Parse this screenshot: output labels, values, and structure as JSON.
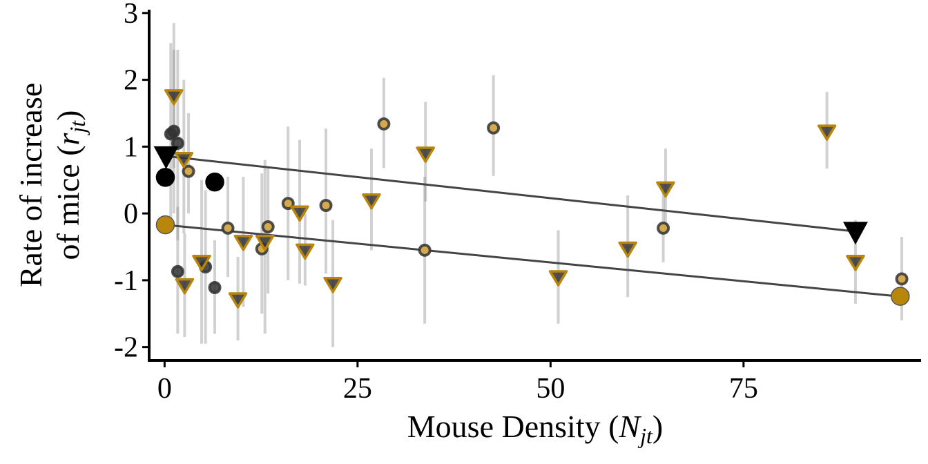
{
  "chart_data": {
    "type": "scatter",
    "xlabel_main": "Mouse Density (",
    "xlabel_sym": "N",
    "xlabel_sub": "jt",
    "xlabel_close": ")",
    "ylabel_line1": "Rate of increase",
    "ylabel_line2_main": "of mice (",
    "ylabel_line2_sym": "r",
    "ylabel_line2_sub": "jt",
    "ylabel_line2_close": ")",
    "xlim": [
      -2,
      98
    ],
    "ylim": [
      -2.2,
      3.05
    ],
    "xticks": [
      0,
      25,
      50,
      75
    ],
    "xtick_labels": [
      "0",
      "25",
      "50",
      "75"
    ],
    "yticks": [
      -2,
      -1,
      0,
      1,
      2,
      3
    ],
    "ytick_labels": [
      "-2",
      "-1",
      "0",
      "1",
      "2",
      "3"
    ],
    "colors": {
      "gold": "#b8860b",
      "gold_light": "#d4aa50",
      "black": "#000000",
      "dark": "#333333",
      "error": "#8c8c8c"
    },
    "trend_lines": [
      {
        "x": [
          0,
          89.5
        ],
        "y": [
          0.86,
          -0.27
        ]
      },
      {
        "x": [
          0,
          95
        ],
        "y": [
          -0.17,
          -1.24
        ]
      }
    ],
    "series": [
      {
        "shape": "circle",
        "fill": "gold",
        "outline": "dark",
        "points": [
          {
            "x": 3.1,
            "y": 0.63,
            "lo": 0.0,
            "hi": 1.5
          },
          {
            "x": 8.2,
            "y": -0.22,
            "lo": -0.95,
            "hi": 0.55
          },
          {
            "x": 12.6,
            "y": -0.53,
            "lo": -1.5,
            "hi": 0.6
          },
          {
            "x": 13.4,
            "y": -0.2,
            "lo": -1.2,
            "hi": 0.7
          },
          {
            "x": 16.0,
            "y": 0.15,
            "lo": -1.0,
            "hi": 1.3
          },
          {
            "x": 20.9,
            "y": 0.12,
            "lo": -0.9,
            "hi": 1.27
          },
          {
            "x": 28.4,
            "y": 1.34,
            "lo": 0.68,
            "hi": 2.03
          },
          {
            "x": 33.7,
            "y": -0.55,
            "lo": -1.65,
            "hi": 0.55
          },
          {
            "x": 42.6,
            "y": 1.28,
            "lo": 0.56,
            "hi": 2.07
          },
          {
            "x": 64.6,
            "y": -0.22,
            "lo": -0.73,
            "hi": 0.3
          },
          {
            "x": 95.5,
            "y": -0.98,
            "lo": -1.6,
            "hi": -0.35
          }
        ]
      },
      {
        "shape": "circle",
        "fill": "dark",
        "outline": "dark",
        "points": [
          {
            "x": 0.8,
            "y": 1.19,
            "lo": -0.2,
            "hi": 2.55
          },
          {
            "x": 1.2,
            "y": 1.23,
            "lo": 0.0,
            "hi": 2.45
          },
          {
            "x": 1.7,
            "y": 1.05,
            "lo": -0.4,
            "hi": 2.45
          },
          {
            "x": 1.7,
            "y": -0.87,
            "lo": -1.8,
            "hi": 0.1
          },
          {
            "x": 5.3,
            "y": -0.8,
            "lo": -1.95,
            "hi": 0.35
          },
          {
            "x": 6.5,
            "y": -1.11,
            "lo": -1.8,
            "hi": -0.4
          }
        ]
      },
      {
        "shape": "triangle",
        "fill": "dark",
        "outline": "gold",
        "points": [
          {
            "x": 1.2,
            "y": 1.76,
            "lo": 0.68,
            "hi": 2.85
          },
          {
            "x": 2.5,
            "y": 0.82,
            "lo": -0.3,
            "hi": 2.0
          },
          {
            "x": 2.6,
            "y": -1.07,
            "lo": -1.85,
            "hi": -0.3
          },
          {
            "x": 4.8,
            "y": -0.72,
            "lo": -1.95,
            "hi": 0.5
          },
          {
            "x": 9.5,
            "y": -1.28,
            "lo": -1.9,
            "hi": -0.65
          },
          {
            "x": 10.2,
            "y": -0.42,
            "lo": -1.4,
            "hi": 0.55
          },
          {
            "x": 13.0,
            "y": -0.42,
            "lo": -1.8,
            "hi": 0.8
          },
          {
            "x": 17.5,
            "y": 0.02,
            "lo": -1.05,
            "hi": 1.1
          },
          {
            "x": 18.2,
            "y": -0.55,
            "lo": -1.08,
            "hi": 0.0
          },
          {
            "x": 21.8,
            "y": -1.05,
            "lo": -2.0,
            "hi": -0.1
          },
          {
            "x": 26.8,
            "y": 0.2,
            "lo": -0.55,
            "hi": 0.97
          },
          {
            "x": 33.8,
            "y": 0.9,
            "lo": 0.18,
            "hi": 1.67
          },
          {
            "x": 51.0,
            "y": -0.95,
            "lo": -1.65,
            "hi": -0.25
          },
          {
            "x": 60.0,
            "y": -0.52,
            "lo": -1.25,
            "hi": 0.27
          },
          {
            "x": 64.9,
            "y": 0.38,
            "lo": -0.2,
            "hi": 0.97
          },
          {
            "x": 85.8,
            "y": 1.23,
            "lo": 0.67,
            "hi": 1.82
          },
          {
            "x": 89.5,
            "y": -0.72,
            "lo": -1.35,
            "hi": -0.1
          }
        ]
      },
      {
        "shape": "circle-large",
        "fill": "black",
        "outline": "black",
        "points": [
          {
            "x": 0.1,
            "y": 0.54
          },
          {
            "x": 6.5,
            "y": 0.47
          }
        ]
      },
      {
        "shape": "triangle-large",
        "fill": "black",
        "outline": "black",
        "points": [
          {
            "x": 0.2,
            "y": 0.86
          },
          {
            "x": 89.5,
            "y": -0.27
          }
        ]
      },
      {
        "shape": "circle-large",
        "fill": "gold",
        "outline": "dark",
        "points": [
          {
            "x": 0.1,
            "y": -0.17
          },
          {
            "x": 95.3,
            "y": -1.24
          }
        ]
      }
    ]
  }
}
